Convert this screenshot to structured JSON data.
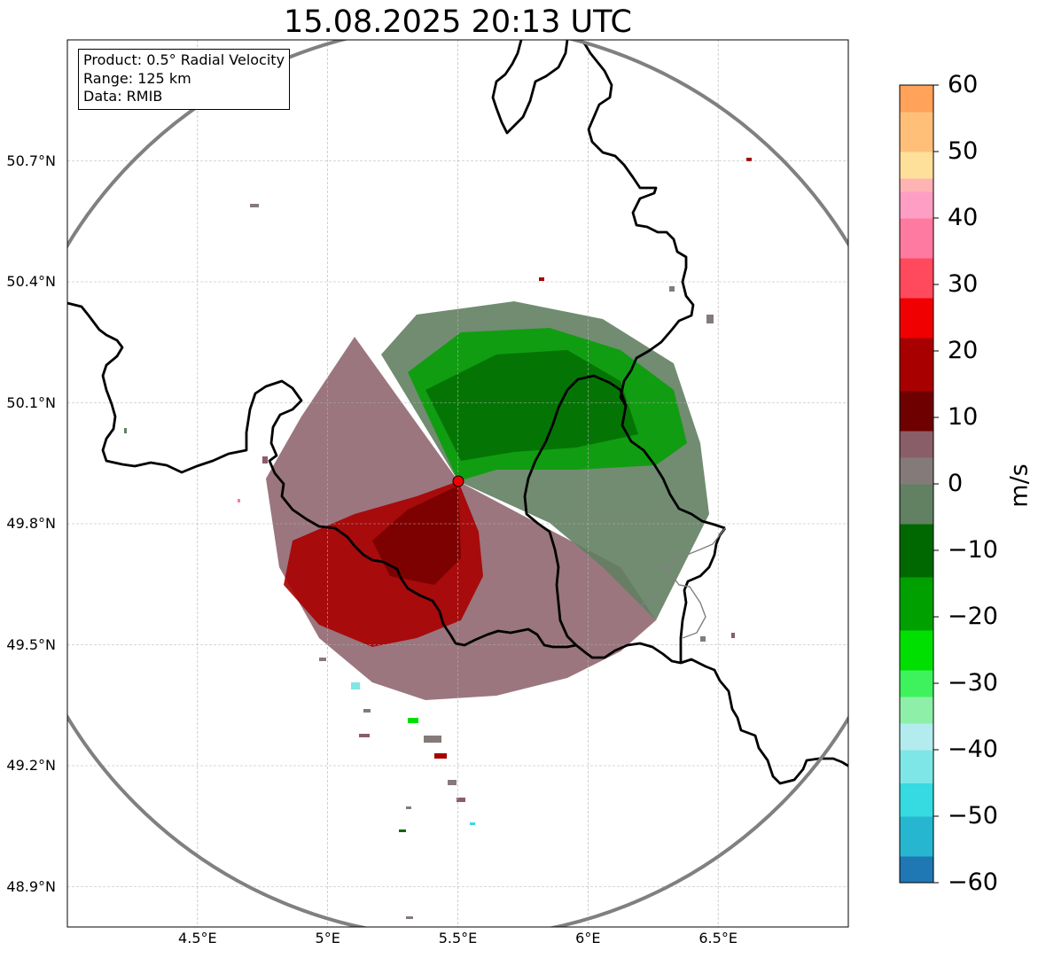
{
  "title": "15.08.2025 20:13 UTC",
  "info_box": {
    "product": "Product: 0.5° Radial Velocity",
    "range": "Range: 125 km",
    "data_source": "Data: RMIB"
  },
  "map": {
    "extent": {
      "lon": [
        4.0,
        7.0
      ],
      "lat": [
        48.8,
        51.0
      ]
    },
    "radar_site": {
      "lon": 5.505,
      "lat": 49.915
    },
    "range_ring_color": "#808080",
    "border_color": "#000000",
    "gridline_color": "#b0b0b0",
    "x_ticks": [
      {
        "lon": 4.5,
        "label": "4.5°E"
      },
      {
        "lon": 5.0,
        "label": "5°E"
      },
      {
        "lon": 5.5,
        "label": "5.5°E"
      },
      {
        "lon": 6.0,
        "label": "6°E"
      },
      {
        "lon": 6.5,
        "label": "6.5°E"
      }
    ],
    "y_ticks": [
      {
        "lat": 50.7,
        "label": "50.7°N"
      },
      {
        "lat": 50.4,
        "label": "50.4°N"
      },
      {
        "lat": 50.1,
        "label": "50.1°N"
      },
      {
        "lat": 49.8,
        "label": "49.8°N"
      },
      {
        "lat": 49.5,
        "label": "49.5°N"
      },
      {
        "lat": 49.2,
        "label": "49.2°N"
      },
      {
        "lat": 48.9,
        "label": "48.9°N"
      }
    ]
  },
  "colorbar": {
    "label": "m/s",
    "range": [
      -60,
      60
    ],
    "ticks": [
      {
        "value": 60,
        "label": "60"
      },
      {
        "value": 50,
        "label": "50"
      },
      {
        "value": 40,
        "label": "40"
      },
      {
        "value": 30,
        "label": "30"
      },
      {
        "value": 20,
        "label": "20"
      },
      {
        "value": 10,
        "label": "10"
      },
      {
        "value": 0,
        "label": "0"
      },
      {
        "value": -10,
        "label": "−10"
      },
      {
        "value": -20,
        "label": "−20"
      },
      {
        "value": -30,
        "label": "−30"
      },
      {
        "value": -40,
        "label": "−40"
      },
      {
        "value": -50,
        "label": "−50"
      },
      {
        "value": -60,
        "label": "−60"
      }
    ],
    "color_stops": [
      {
        "from": -60,
        "to": -56,
        "color": "#1f77b4"
      },
      {
        "from": -56,
        "to": -50,
        "color": "#27b6d0"
      },
      {
        "from": -50,
        "to": -45,
        "color": "#35dbe0"
      },
      {
        "from": -45,
        "to": -40,
        "color": "#7ee6e6"
      },
      {
        "from": -40,
        "to": -36,
        "color": "#b3ecef"
      },
      {
        "from": -36,
        "to": -32,
        "color": "#8ef0a8"
      },
      {
        "from": -32,
        "to": -28,
        "color": "#3ef25e"
      },
      {
        "from": -28,
        "to": -22,
        "color": "#00e000"
      },
      {
        "from": -22,
        "to": -14,
        "color": "#00a000"
      },
      {
        "from": -14,
        "to": -6,
        "color": "#006800"
      },
      {
        "from": -6,
        "to": 0,
        "color": "#628062"
      },
      {
        "from": 0,
        "to": 4,
        "color": "#857a7a"
      },
      {
        "from": 4,
        "to": 8,
        "color": "#8a5e68"
      },
      {
        "from": 8,
        "to": 14,
        "color": "#6e0000"
      },
      {
        "from": 14,
        "to": 22,
        "color": "#a80000"
      },
      {
        "from": 22,
        "to": 28,
        "color": "#f00000"
      },
      {
        "from": 28,
        "to": 34,
        "color": "#ff4a5e"
      },
      {
        "from": 34,
        "to": 40,
        "color": "#ff7aa0"
      },
      {
        "from": 40,
        "to": 44,
        "color": "#ff9ec4"
      },
      {
        "from": 44,
        "to": 46,
        "color": "#ffb4b4"
      },
      {
        "from": 46,
        "to": 50,
        "color": "#ffe09a"
      },
      {
        "from": 50,
        "to": 56,
        "color": "#ffbf78"
      },
      {
        "from": 56,
        "to": 60,
        "color": "#ffa25a"
      }
    ]
  }
}
